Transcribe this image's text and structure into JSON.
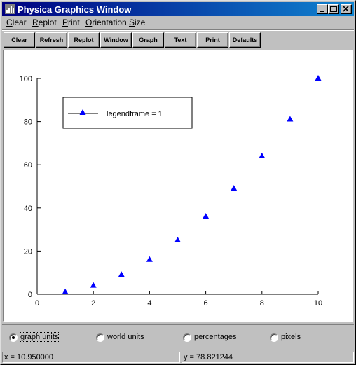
{
  "window": {
    "title": "Physica Graphics Window"
  },
  "menu": {
    "items": [
      {
        "key": "C",
        "rest": "lear"
      },
      {
        "key": "R",
        "rest": "eplot"
      },
      {
        "key": "P",
        "rest": "rint"
      },
      {
        "key": "O",
        "rest": "rientation"
      },
      {
        "key": "S",
        "rest": "ize"
      }
    ]
  },
  "toolbar": {
    "buttons": [
      "Clear",
      "Refresh",
      "Replot",
      "Window",
      "Graph",
      "Text",
      "Print",
      "Defaults"
    ]
  },
  "chart_data": {
    "type": "scatter",
    "x": [
      1,
      2,
      3,
      4,
      5,
      6,
      7,
      8,
      9,
      10
    ],
    "y": [
      1,
      4,
      9,
      16,
      25,
      36,
      49,
      64,
      81,
      100
    ],
    "xlim": [
      0,
      10
    ],
    "ylim": [
      0,
      100
    ],
    "xticks": [
      "0",
      "2",
      "4",
      "6",
      "8",
      "10"
    ],
    "yticks": [
      "0",
      "20",
      "40",
      "60",
      "80",
      "100"
    ],
    "marker": "triangle",
    "color": "#0000ff",
    "legend": {
      "label": "legendframe = 1",
      "placement": "top-left",
      "frame": true
    },
    "grid": false
  },
  "units": {
    "options": [
      "graph units",
      "world units",
      "percentages",
      "pixels"
    ],
    "selected": 0
  },
  "status": {
    "x": "x = 10.950000",
    "y": "y = 78.821244"
  }
}
